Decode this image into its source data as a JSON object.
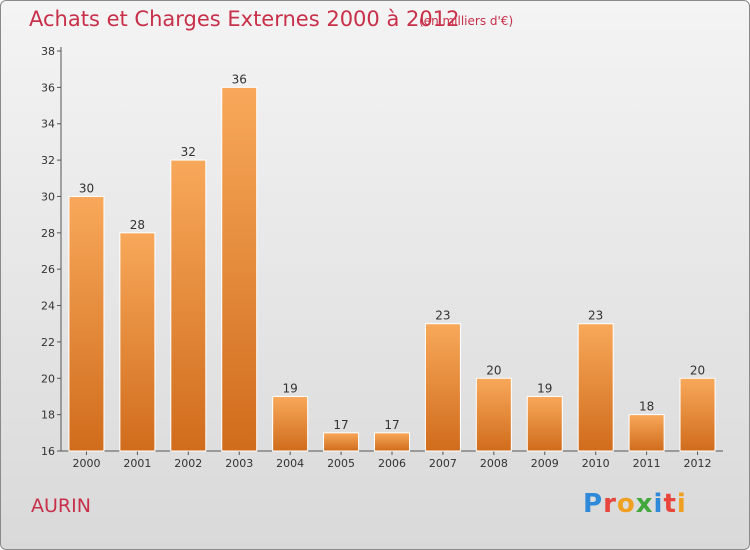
{
  "header": {
    "title": "Achats et Charges Externes 2000 à 2012",
    "subtitle": "(en milliers d'€)"
  },
  "footer": {
    "commune": "AURIN",
    "logo_text": "Proxiti"
  },
  "colors": {
    "bar_light": "#f7a658",
    "bar_dark": "#d2701e",
    "title": "#c8304a"
  },
  "chart_data": {
    "type": "bar",
    "title": "Achats et Charges Externes 2000 à 2012",
    "subtitle": "(en milliers d'€)",
    "xlabel": "",
    "ylabel": "",
    "categories": [
      "2000",
      "2001",
      "2002",
      "2003",
      "2004",
      "2005",
      "2006",
      "2007",
      "2008",
      "2009",
      "2010",
      "2011",
      "2012"
    ],
    "values": [
      30,
      28,
      32,
      36,
      19,
      17,
      17,
      23,
      20,
      19,
      23,
      18,
      20
    ],
    "ylim": [
      16,
      38
    ],
    "yticks": [
      16,
      18,
      20,
      22,
      24,
      26,
      28,
      30,
      32,
      34,
      36,
      38
    ],
    "grid": false,
    "legend": "none"
  }
}
